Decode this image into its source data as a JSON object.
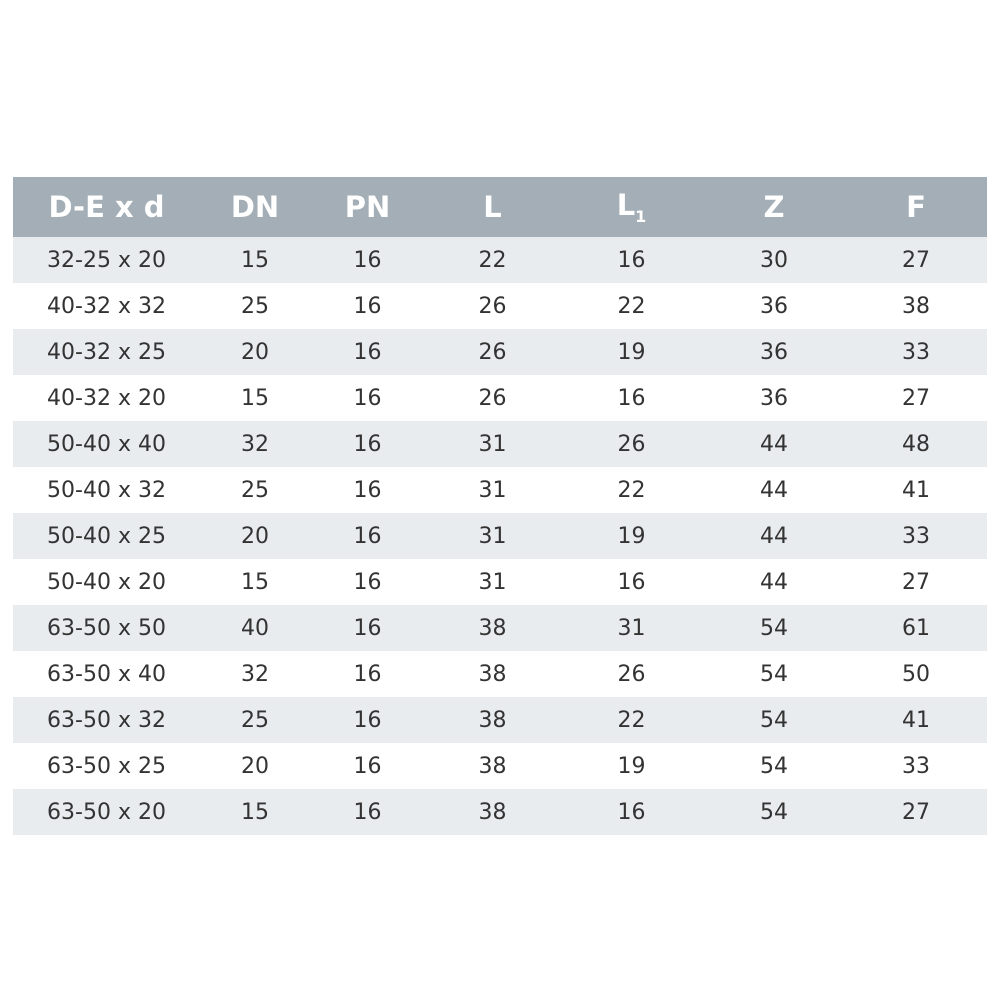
{
  "table": {
    "headers": [
      "D-E x d",
      "DN",
      "PN",
      "L",
      "L",
      "Z",
      "F"
    ],
    "header_subscripts": {
      "4": "1"
    },
    "rows": [
      [
        "32-25 x 20",
        "15",
        "16",
        "22",
        "16",
        "30",
        "27"
      ],
      [
        "40-32 x 32",
        "25",
        "16",
        "26",
        "22",
        "36",
        "38"
      ],
      [
        "40-32 x 25",
        "20",
        "16",
        "26",
        "19",
        "36",
        "33"
      ],
      [
        "40-32 x 20",
        "15",
        "16",
        "26",
        "16",
        "36",
        "27"
      ],
      [
        "50-40 x 40",
        "32",
        "16",
        "31",
        "26",
        "44",
        "48"
      ],
      [
        "50-40 x 32",
        "25",
        "16",
        "31",
        "22",
        "44",
        "41"
      ],
      [
        "50-40 x 25",
        "20",
        "16",
        "31",
        "19",
        "44",
        "33"
      ],
      [
        "50-40 x 20",
        "15",
        "16",
        "31",
        "16",
        "44",
        "27"
      ],
      [
        "63-50 x 50",
        "40",
        "16",
        "38",
        "31",
        "54",
        "61"
      ],
      [
        "63-50 x 40",
        "32",
        "16",
        "38",
        "26",
        "54",
        "50"
      ],
      [
        "63-50 x 32",
        "25",
        "16",
        "38",
        "22",
        "54",
        "41"
      ],
      [
        "63-50 x 25",
        "20",
        "16",
        "38",
        "19",
        "54",
        "33"
      ],
      [
        "63-50 x 20",
        "15",
        "16",
        "38",
        "16",
        "54",
        "27"
      ]
    ],
    "colors": {
      "header_bg": "#a3aeb6",
      "stripe": "#e8ecef",
      "text": "#333333"
    }
  }
}
